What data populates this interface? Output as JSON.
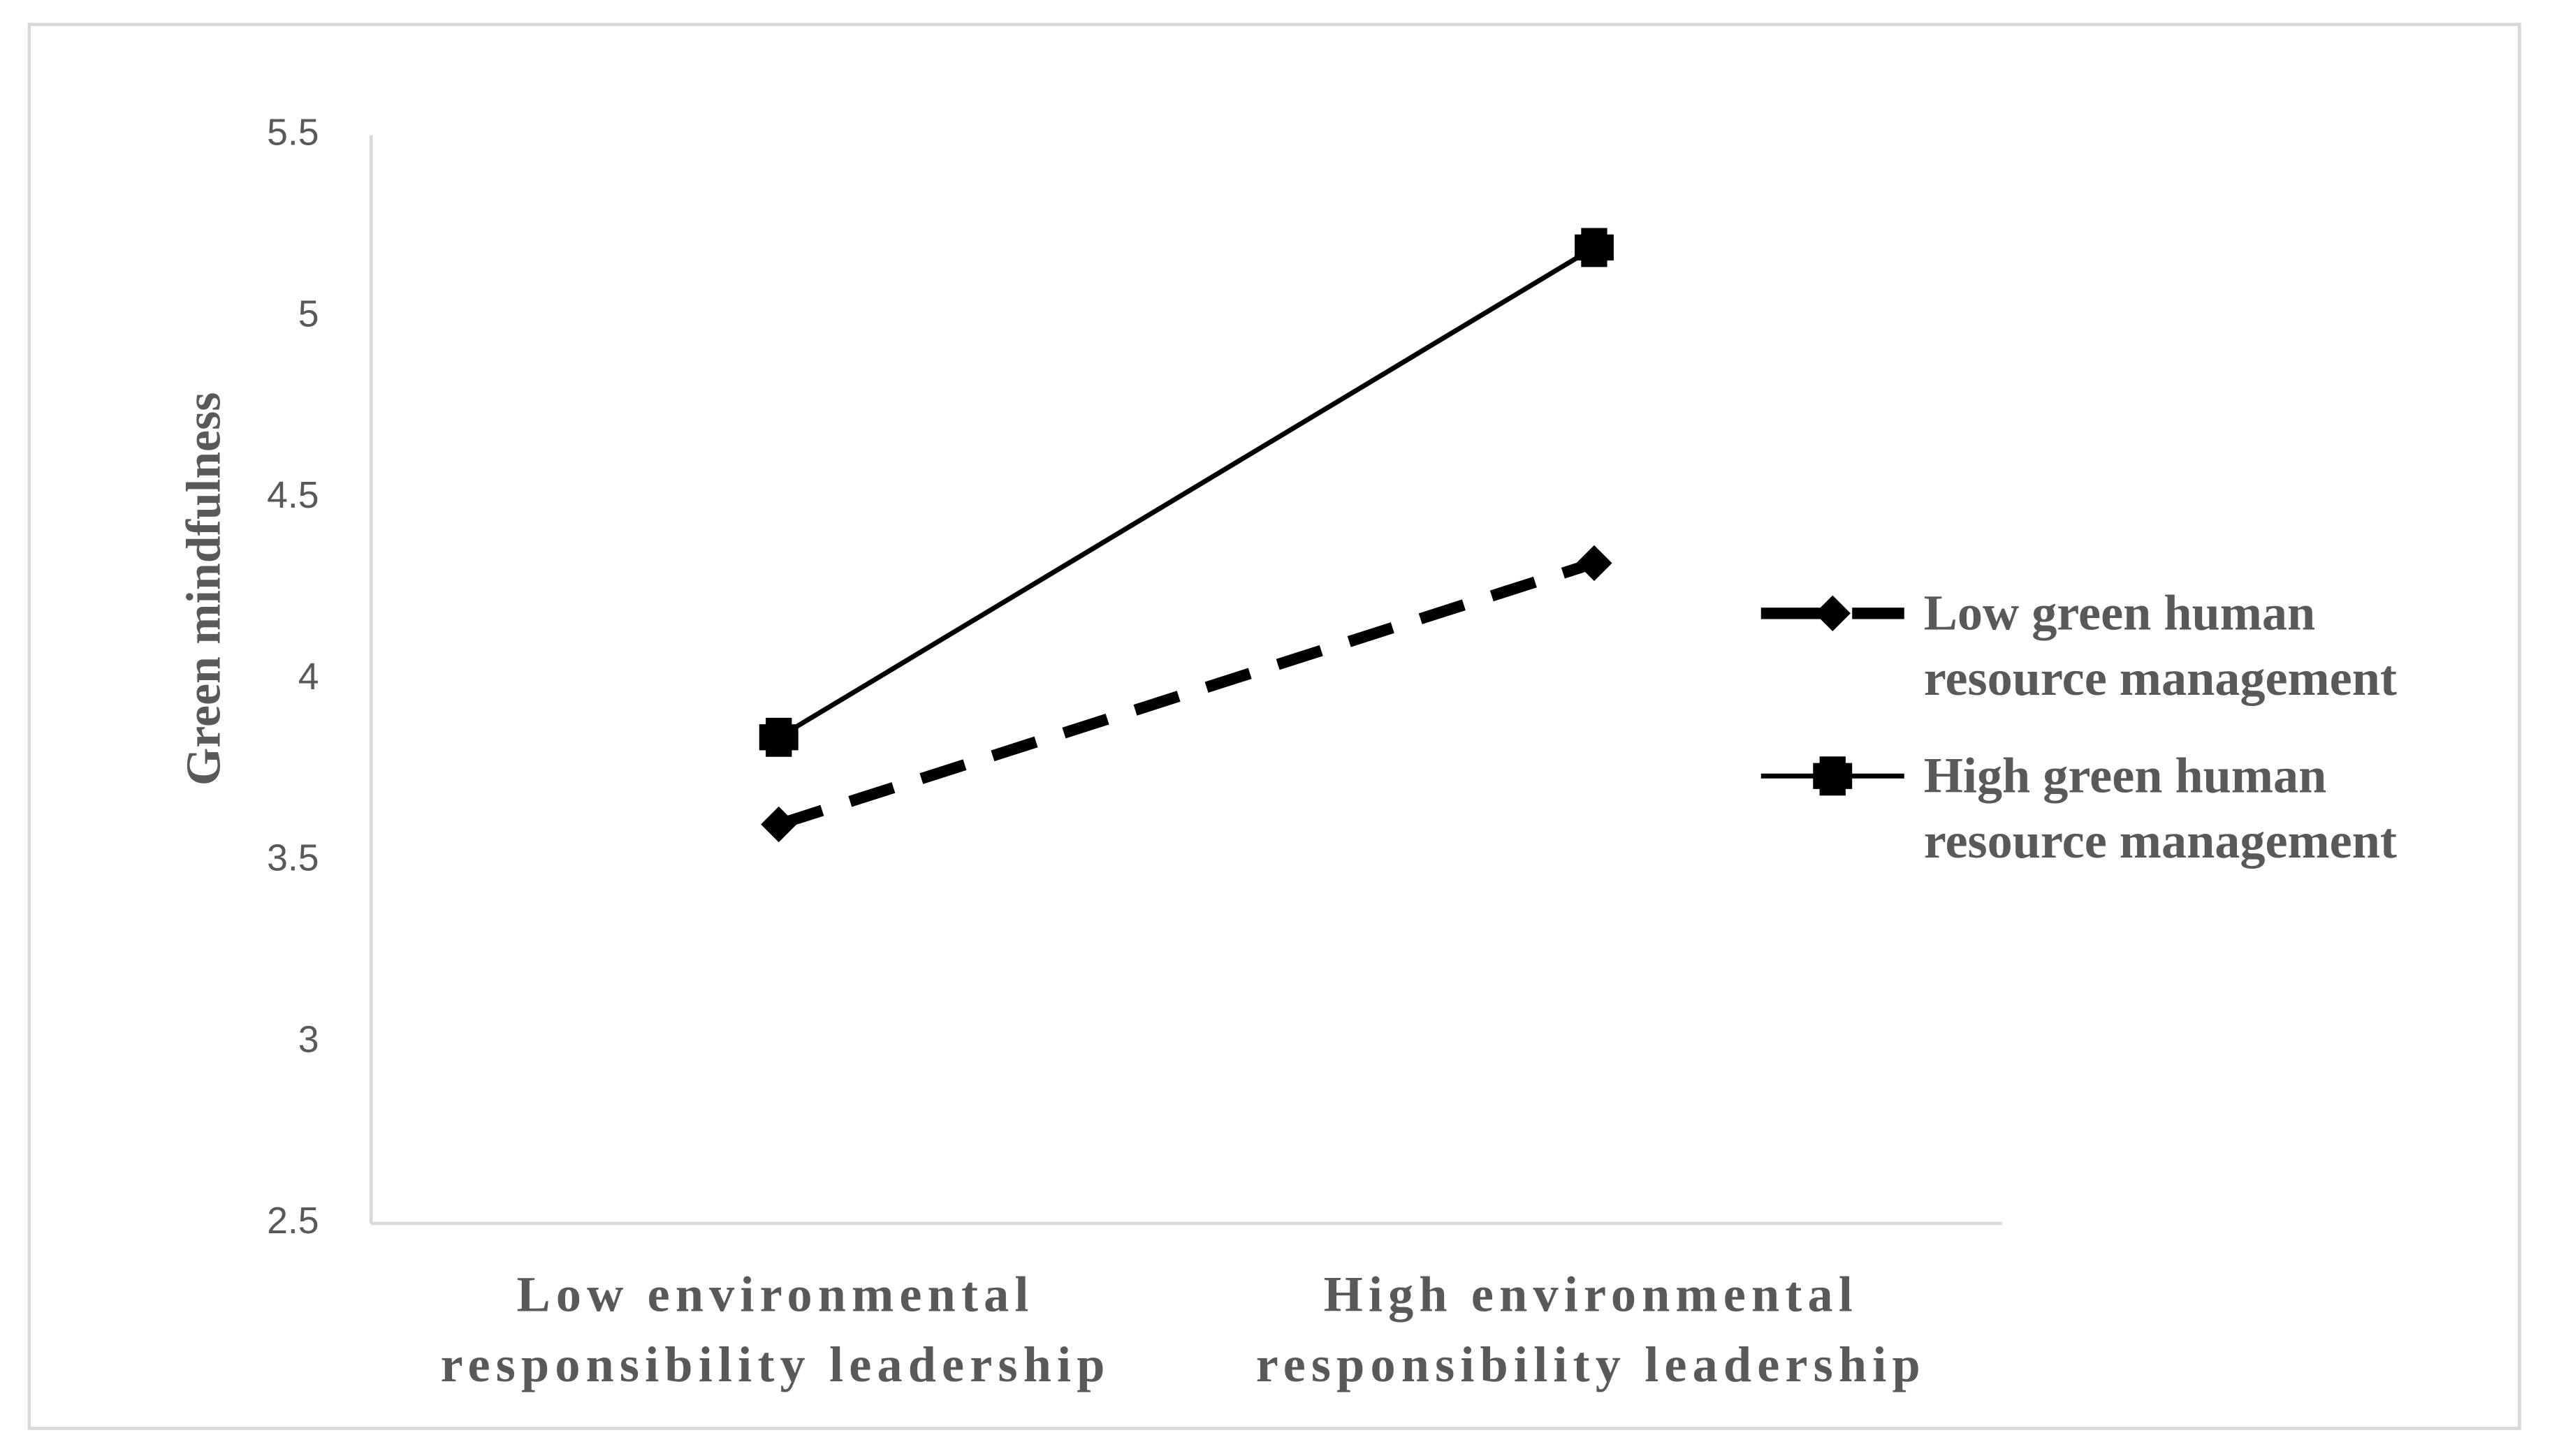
{
  "chart_data": {
    "type": "line",
    "y_label": "Green mindfulness",
    "categories": [
      "Low environmental responsibility leadership",
      "High environmental responsibility leadership"
    ],
    "series": [
      {
        "name": "Low green human resource management",
        "color": "#000000",
        "values": [
          3.6,
          4.32
        ]
      },
      {
        "name": "High green human resource management",
        "color": "#000000",
        "values": [
          3.84,
          5.19
        ]
      }
    ],
    "ylim": [
      2.5,
      5.5
    ],
    "yticks": [
      2.5,
      3,
      3.5,
      4,
      4.5,
      5,
      5.5
    ],
    "grid": false,
    "legend": "right"
  }
}
